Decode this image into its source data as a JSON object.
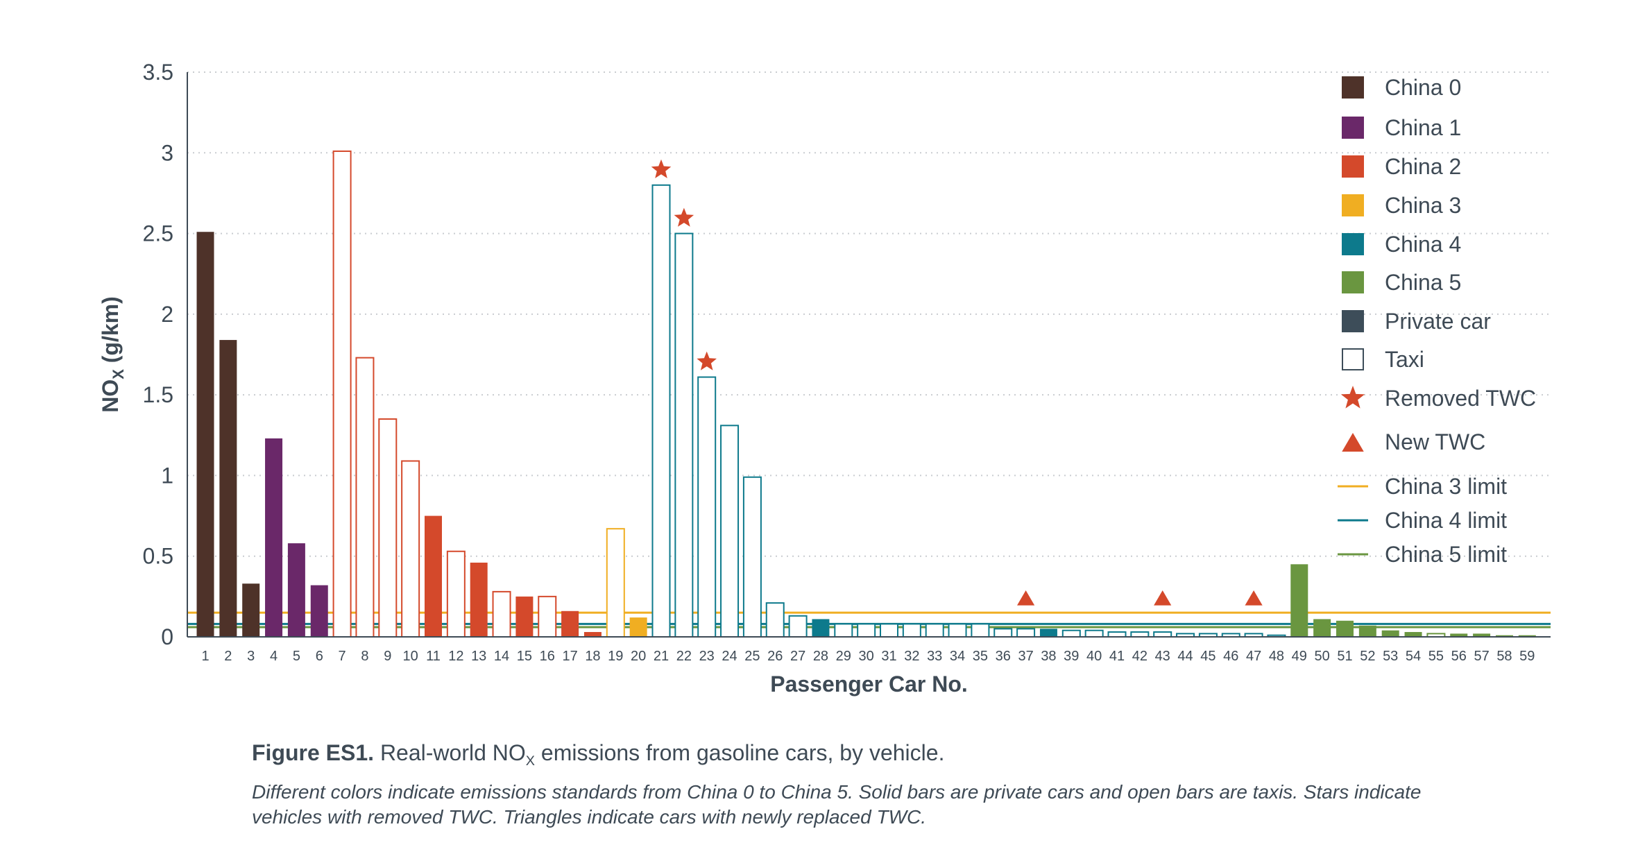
{
  "chart_data": {
    "type": "bar",
    "title": "",
    "xlabel": "Passenger Car No.",
    "ylabel": {
      "main": "NO",
      "sub": "X",
      "unit": " (g/km)"
    },
    "ylim": [
      0,
      3.5
    ],
    "yticks": [
      "0",
      "0.5",
      "1",
      "1.5",
      "2",
      "2.5",
      "3",
      "3.5"
    ],
    "ytick_values": [
      0,
      0.5,
      1,
      1.5,
      2,
      2.5,
      3,
      3.5
    ],
    "grid": "horizontal dotted",
    "legend_position": "right",
    "colors": {
      "China 0": "#4e3229",
      "China 1": "#6a2869",
      "China 2": "#d4492b",
      "China 3": "#f0ae22",
      "China 4": "#0d7a8c",
      "China 5": "#6a9640",
      "Private car": "#3d4d59",
      "marker": "#d4492b",
      "China 3 limit": "#f0ae22",
      "China 4 limit": "#0d7a8c",
      "China 5 limit": "#6a9640"
    },
    "categories": [
      "1",
      "2",
      "3",
      "4",
      "5",
      "6",
      "7",
      "8",
      "9",
      "10",
      "11",
      "12",
      "13",
      "14",
      "15",
      "16",
      "17",
      "18",
      "19",
      "20",
      "21",
      "22",
      "23",
      "24",
      "25",
      "26",
      "27",
      "28",
      "29",
      "30",
      "31",
      "32",
      "33",
      "34",
      "35",
      "36",
      "37",
      "38",
      "39",
      "40",
      "41",
      "42",
      "43",
      "44",
      "45",
      "46",
      "47",
      "48",
      "49",
      "50",
      "51",
      "52",
      "53",
      "54",
      "55",
      "56",
      "57",
      "58",
      "59"
    ],
    "values": [
      2.51,
      1.84,
      0.33,
      1.23,
      0.58,
      0.32,
      3.01,
      1.73,
      1.35,
      1.09,
      0.75,
      0.53,
      0.46,
      0.28,
      0.25,
      0.25,
      0.16,
      0.03,
      0.67,
      0.12,
      2.8,
      2.5,
      1.61,
      1.31,
      0.99,
      0.21,
      0.13,
      0.11,
      0.08,
      0.08,
      0.08,
      0.08,
      0.08,
      0.08,
      0.08,
      0.05,
      0.05,
      0.05,
      0.04,
      0.04,
      0.03,
      0.03,
      0.03,
      0.02,
      0.02,
      0.02,
      0.02,
      0.01,
      0.45,
      0.11,
      0.1,
      0.07,
      0.04,
      0.03,
      0.02,
      0.02,
      0.02,
      0.01,
      0.01
    ],
    "standard": [
      "China 0",
      "China 0",
      "China 0",
      "China 1",
      "China 1",
      "China 1",
      "China 2",
      "China 2",
      "China 2",
      "China 2",
      "China 2",
      "China 2",
      "China 2",
      "China 2",
      "China 2",
      "China 2",
      "China 2",
      "China 2",
      "China 3",
      "China 3",
      "China 4",
      "China 4",
      "China 4",
      "China 4",
      "China 4",
      "China 4",
      "China 4",
      "China 4",
      "China 4",
      "China 4",
      "China 4",
      "China 4",
      "China 4",
      "China 4",
      "China 4",
      "China 4",
      "China 4",
      "China 4",
      "China 4",
      "China 4",
      "China 4",
      "China 4",
      "China 4",
      "China 4",
      "China 4",
      "China 4",
      "China 4",
      "China 4",
      "China 5",
      "China 5",
      "China 5",
      "China 5",
      "China 5",
      "China 5",
      "China 5",
      "China 5",
      "China 5",
      "China 5",
      "China 5"
    ],
    "taxi": [
      false,
      false,
      false,
      false,
      false,
      false,
      true,
      true,
      true,
      true,
      false,
      true,
      false,
      true,
      false,
      true,
      false,
      false,
      true,
      false,
      true,
      true,
      true,
      true,
      true,
      true,
      true,
      false,
      true,
      true,
      true,
      true,
      true,
      true,
      true,
      true,
      true,
      false,
      true,
      true,
      true,
      true,
      true,
      true,
      true,
      true,
      true,
      true,
      false,
      false,
      false,
      false,
      false,
      false,
      true,
      false,
      false,
      false,
      false
    ],
    "removed_twc": [
      "21",
      "22",
      "23"
    ],
    "new_twc": [
      "37",
      "43",
      "47"
    ],
    "limits": [
      {
        "name": "China 3 limit",
        "value": 0.15
      },
      {
        "name": "China 4 limit",
        "value": 0.08
      },
      {
        "name": "China 5 limit",
        "value": 0.06
      }
    ],
    "legend": [
      {
        "label": "China 0",
        "kind": "solid",
        "color_key": "China 0"
      },
      {
        "label": "China 1",
        "kind": "solid",
        "color_key": "China 1"
      },
      {
        "label": "China 2",
        "kind": "solid",
        "color_key": "China 2"
      },
      {
        "label": "China 3",
        "kind": "solid",
        "color_key": "China 3"
      },
      {
        "label": "China 4",
        "kind": "solid",
        "color_key": "China 4"
      },
      {
        "label": "China 5",
        "kind": "solid",
        "color_key": "China 5"
      },
      {
        "label": "Private car",
        "kind": "solid",
        "color_key": "Private car"
      },
      {
        "label": "Taxi",
        "kind": "open",
        "color_key": "Private car"
      },
      {
        "label": "Removed TWC",
        "kind": "star",
        "color_key": "marker"
      },
      {
        "label": "New TWC",
        "kind": "triangle",
        "color_key": "marker"
      },
      {
        "label": "China 3 limit",
        "kind": "line",
        "color_key": "China 3 limit"
      },
      {
        "label": "China 4 limit",
        "kind": "line",
        "color_key": "China 4 limit"
      },
      {
        "label": "China 5 limit",
        "kind": "line",
        "color_key": "China 5 limit"
      }
    ]
  },
  "caption": {
    "figure_label": "Figure ES1.",
    "title_pre": " Real-world NO",
    "title_sub": "X",
    "title_post": " emissions from gasoline cars, by vehicle.",
    "note": "Different colors indicate emissions standards from China 0 to China 5. Solid bars are private cars and open bars are taxis. Stars indicate vehicles with removed TWC. Triangles indicate cars with newly replaced TWC."
  }
}
